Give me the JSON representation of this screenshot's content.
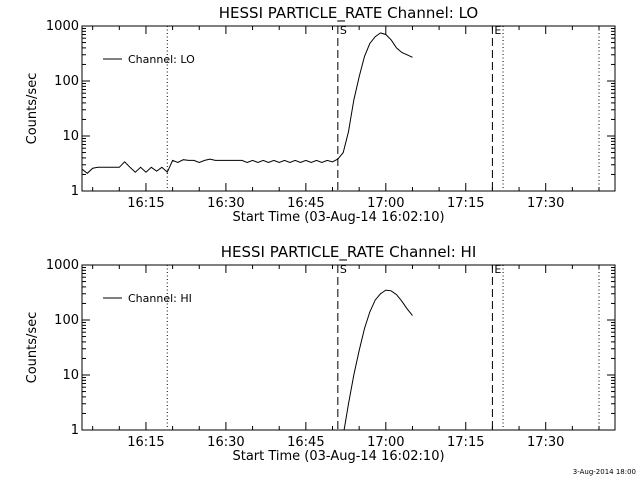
{
  "footer": "3-Aug-2014 18:00",
  "chart_data": [
    {
      "type": "line",
      "scale_y": "log",
      "title": "HESSI PARTICLE_RATE Channel: LO",
      "xlabel": "Start Time (03-Aug-14 16:02:10)",
      "ylabel": "Counts/sec",
      "legend": {
        "label": "Channel: LO",
        "placement": "top-left"
      },
      "xlim": [
        "16:03",
        "17:43"
      ],
      "ylim": [
        1,
        1000
      ],
      "x_ticks": [
        "16:15",
        "16:30",
        "16:45",
        "17:00",
        "17:15",
        "17:30"
      ],
      "y_ticks": [
        "1",
        "10",
        "100",
        "1000"
      ],
      "markers": [
        {
          "label": "S",
          "time": "16:51",
          "style": "dashed"
        },
        {
          "label": "E",
          "time": "17:20",
          "style": "dashed"
        },
        {
          "label": "",
          "time": "16:19",
          "style": "dotted"
        },
        {
          "label": "",
          "time": "17:22",
          "style": "dotted"
        },
        {
          "label": "",
          "time": "17:40",
          "style": "dotted"
        }
      ],
      "series": [
        {
          "x": [
            "16:03",
            "16:04",
            "16:05",
            "16:06",
            "16:07",
            "16:08",
            "16:09",
            "16:10",
            "16:11",
            "16:12",
            "16:13",
            "16:14",
            "16:15",
            "16:16",
            "16:17",
            "16:18",
            "16:19",
            "16:20",
            "16:21",
            "16:22",
            "16:23",
            "16:24",
            "16:25",
            "16:26",
            "16:27",
            "16:28",
            "16:29",
            "16:30",
            "16:31",
            "16:32",
            "16:33",
            "16:34",
            "16:35",
            "16:36",
            "16:37",
            "16:38",
            "16:39",
            "16:40",
            "16:41",
            "16:42",
            "16:43",
            "16:44",
            "16:45",
            "16:46",
            "16:47",
            "16:48",
            "16:49",
            "16:50",
            "16:51",
            "16:52",
            "16:53",
            "16:54",
            "16:55",
            "16:56",
            "16:57",
            "16:58",
            "16:59",
            "17:00",
            "17:01",
            "17:02",
            "17:03",
            "17:04",
            "17:05"
          ],
          "values": [
            2.5,
            2.1,
            2.6,
            2.7,
            2.7,
            2.7,
            2.7,
            2.7,
            3.4,
            2.7,
            2.2,
            2.7,
            2.2,
            2.7,
            2.3,
            2.7,
            2.2,
            3.6,
            3.3,
            3.7,
            3.6,
            3.6,
            3.3,
            3.6,
            3.8,
            3.6,
            3.6,
            3.6,
            3.6,
            3.6,
            3.6,
            3.3,
            3.6,
            3.3,
            3.6,
            3.3,
            3.6,
            3.3,
            3.6,
            3.3,
            3.6,
            3.3,
            3.6,
            3.3,
            3.6,
            3.3,
            3.6,
            3.4,
            3.8,
            5,
            12,
            45,
            120,
            280,
            480,
            640,
            750,
            700,
            560,
            400,
            330,
            300,
            270
          ]
        }
      ]
    },
    {
      "type": "line",
      "scale_y": "log",
      "title": "HESSI PARTICLE_RATE Channel: HI",
      "xlabel": "Start Time (03-Aug-14 16:02:10)",
      "ylabel": "Counts/sec",
      "legend": {
        "label": "Channel: HI",
        "placement": "top-left"
      },
      "xlim": [
        "16:03",
        "17:43"
      ],
      "ylim": [
        1,
        1000
      ],
      "x_ticks": [
        "16:15",
        "16:30",
        "16:45",
        "17:00",
        "17:15",
        "17:30"
      ],
      "y_ticks": [
        "1",
        "10",
        "100",
        "1000"
      ],
      "markers": [
        {
          "label": "S",
          "time": "16:51",
          "style": "dashed"
        },
        {
          "label": "E",
          "time": "17:20",
          "style": "dashed"
        },
        {
          "label": "",
          "time": "16:19",
          "style": "dotted"
        },
        {
          "label": "",
          "time": "17:22",
          "style": "dotted"
        },
        {
          "label": "",
          "time": "17:40",
          "style": "dotted"
        }
      ],
      "series": [
        {
          "x": [
            "16:52",
            "16:53",
            "16:54",
            "16:55",
            "16:56",
            "16:57",
            "16:58",
            "16:59",
            "17:00",
            "17:01",
            "17:02",
            "17:03",
            "17:04",
            "17:05"
          ],
          "values": [
            0.8,
            3,
            10,
            28,
            70,
            140,
            230,
            300,
            350,
            340,
            290,
            220,
            160,
            120
          ]
        }
      ]
    }
  ]
}
